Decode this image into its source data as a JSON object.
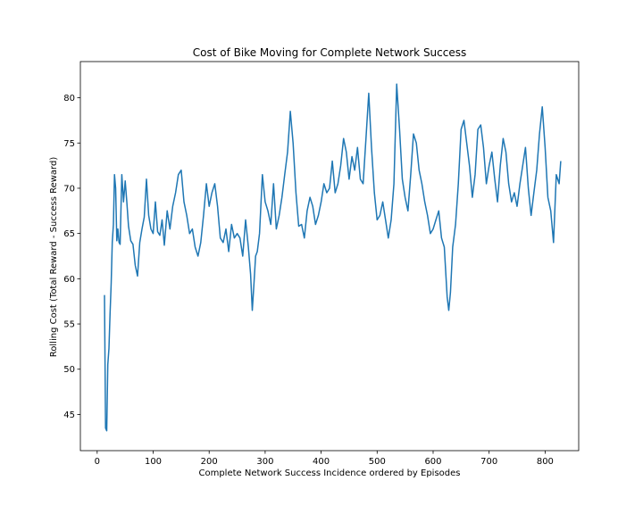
{
  "chart_data": {
    "type": "line",
    "title": "Cost of Bike Moving for Complete Network Success",
    "xlabel": "Complete Network Success Incidence ordered by Episodes",
    "ylabel": "Rolling Cost (Total Reward - Success Reward)",
    "xlim": [
      -30,
      860
    ],
    "ylim": [
      41,
      84
    ],
    "xticks": [
      0,
      100,
      200,
      300,
      400,
      500,
      600,
      700,
      800
    ],
    "yticks": [
      45,
      50,
      55,
      60,
      65,
      70,
      75,
      80
    ],
    "grid": false,
    "series": [
      {
        "color": "#1f77b4",
        "x": [
          13,
          15,
          17,
          19,
          21,
          23,
          25,
          27,
          29,
          31,
          33,
          35,
          37,
          39,
          41,
          44,
          47,
          50,
          53,
          56,
          60,
          64,
          68,
          72,
          76,
          80,
          84,
          88,
          92,
          96,
          100,
          104,
          108,
          112,
          116,
          120,
          125,
          130,
          135,
          140,
          145,
          150,
          155,
          160,
          165,
          170,
          175,
          180,
          185,
          190,
          195,
          200,
          205,
          210,
          215,
          220,
          225,
          230,
          235,
          240,
          245,
          250,
          255,
          260,
          265,
          270,
          274,
          277,
          280,
          283,
          286,
          290,
          295,
          300,
          305,
          310,
          315,
          320,
          325,
          330,
          335,
          340,
          345,
          350,
          355,
          360,
          365,
          370,
          375,
          380,
          385,
          390,
          395,
          400,
          405,
          410,
          415,
          420,
          425,
          430,
          435,
          440,
          445,
          450,
          455,
          460,
          465,
          470,
          475,
          480,
          485,
          490,
          495,
          500,
          505,
          510,
          515,
          520,
          525,
          530,
          535,
          540,
          545,
          550,
          555,
          560,
          565,
          570,
          575,
          580,
          585,
          590,
          595,
          600,
          605,
          610,
          615,
          620,
          625,
          628,
          631,
          635,
          640,
          645,
          650,
          655,
          660,
          665,
          670,
          675,
          680,
          685,
          690,
          695,
          700,
          705,
          710,
          715,
          720,
          725,
          730,
          735,
          740,
          745,
          750,
          755,
          760,
          765,
          770,
          775,
          780,
          785,
          790,
          795,
          800,
          805,
          810,
          815,
          820,
          825,
          828
        ],
        "y": [
          58.2,
          43.5,
          43.2,
          50.5,
          52.3,
          56.0,
          59.5,
          64.0,
          66.0,
          71.5,
          70.0,
          64.2,
          65.5,
          64.0,
          63.8,
          71.5,
          68.5,
          70.8,
          68.5,
          65.8,
          64.2,
          63.8,
          61.5,
          60.3,
          64.0,
          65.5,
          66.8,
          71.0,
          67.0,
          65.5,
          65.0,
          68.5,
          65.2,
          64.8,
          66.5,
          63.7,
          67.5,
          65.5,
          68.0,
          69.5,
          71.5,
          72.0,
          68.5,
          67.0,
          65.0,
          65.5,
          63.5,
          62.5,
          64.0,
          67.0,
          70.5,
          68.0,
          69.5,
          70.5,
          68.0,
          64.5,
          64.0,
          65.5,
          63.0,
          66.0,
          64.5,
          65.0,
          64.5,
          62.5,
          66.5,
          63.5,
          60.5,
          56.5,
          59.5,
          62.5,
          63.0,
          65.0,
          71.5,
          68.5,
          67.5,
          66.0,
          70.5,
          65.5,
          67.0,
          69.0,
          71.5,
          74.0,
          78.5,
          75.0,
          69.5,
          65.8,
          66.0,
          64.5,
          67.5,
          69.0,
          68.0,
          66.0,
          67.0,
          68.5,
          70.5,
          69.5,
          70.0,
          73.0,
          69.5,
          70.5,
          72.5,
          75.5,
          74.0,
          71.0,
          73.5,
          72.0,
          74.5,
          71.0,
          70.5,
          75.5,
          80.5,
          74.5,
          69.5,
          66.5,
          67.0,
          68.5,
          66.5,
          64.5,
          66.5,
          70.5,
          81.5,
          76.5,
          71.0,
          69.0,
          67.5,
          71.5,
          76.0,
          75.0,
          72.0,
          70.5,
          68.5,
          67.0,
          65.0,
          65.5,
          66.5,
          67.5,
          64.5,
          63.5,
          58.0,
          56.5,
          58.5,
          63.5,
          66.0,
          70.5,
          76.5,
          77.5,
          75.0,
          72.5,
          69.0,
          71.5,
          76.5,
          77.0,
          74.5,
          70.5,
          72.5,
          74.0,
          71.0,
          68.5,
          72.5,
          75.5,
          74.0,
          70.5,
          68.5,
          69.5,
          68.0,
          70.5,
          72.5,
          74.5,
          70.0,
          67.0,
          69.5,
          72.0,
          76.0,
          79.0,
          74.5,
          69.0,
          67.5,
          64.0,
          71.5,
          70.5,
          73.0
        ]
      }
    ]
  }
}
